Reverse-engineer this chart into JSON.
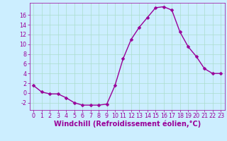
{
  "hours": [
    0,
    1,
    2,
    3,
    4,
    5,
    6,
    7,
    8,
    9,
    10,
    11,
    12,
    13,
    14,
    15,
    16,
    17,
    18,
    19,
    20,
    21,
    22,
    23
  ],
  "values": [
    1.5,
    0.2,
    -0.2,
    -0.2,
    -1.0,
    -2.0,
    -2.5,
    -2.5,
    -2.5,
    -2.3,
    1.5,
    7.0,
    11.0,
    13.5,
    15.5,
    17.5,
    17.7,
    17.0,
    12.5,
    9.5,
    7.5,
    5.0,
    4.0,
    4.0
  ],
  "line_color": "#990099",
  "marker": "D",
  "marker_size": 2.5,
  "bg_color": "#cceeff",
  "grid_color": "#aaddcc",
  "xlabel": "Windchill (Refroidissement éolien,°C)",
  "xlim": [
    -0.5,
    23.5
  ],
  "ylim": [
    -3.5,
    18.5
  ],
  "yticks": [
    -2,
    0,
    2,
    4,
    6,
    8,
    10,
    12,
    14,
    16
  ],
  "xticks": [
    0,
    1,
    2,
    3,
    4,
    5,
    6,
    7,
    8,
    9,
    10,
    11,
    12,
    13,
    14,
    15,
    16,
    17,
    18,
    19,
    20,
    21,
    22,
    23
  ],
  "tick_color": "#990099",
  "tick_fontsize": 5.8,
  "xlabel_fontsize": 7.0,
  "linewidth": 1.0
}
